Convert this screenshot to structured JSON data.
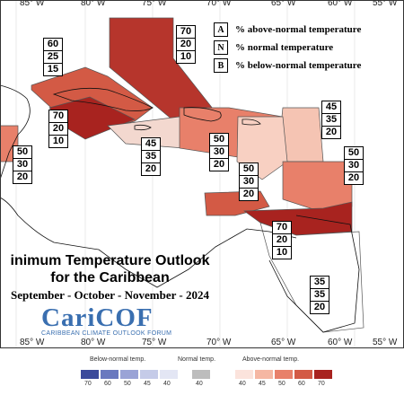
{
  "map": {
    "title_line1": "inimum Temperature Outlook",
    "title_line2": "for the Caribbean",
    "title_line3": "September - October - November - 2024",
    "logo": "CariCOF",
    "logo_sub": "CARIBBEAN CLIMATE OUTLOOK FORUM",
    "lon_labels": [
      "85° W",
      "80° W",
      "75° W",
      "70° W",
      "65° W",
      "60° W",
      "55° W"
    ],
    "lon_labels_bottom": [
      "85° W",
      "80° W",
      "75° W",
      "70° W",
      "65° W",
      "60° W",
      "55° W"
    ],
    "legend": [
      {
        "key": "A",
        "text": "% above-normal temperature"
      },
      {
        "key": "N",
        "text": "% normal temperature"
      },
      {
        "key": "B",
        "text": "% below-normal temperature"
      }
    ],
    "boxes": [
      {
        "name": "box-bahamas",
        "a": "70",
        "n": "20",
        "b": "10"
      },
      {
        "name": "box-cuba-west",
        "a": "60",
        "n": "25",
        "b": "15"
      },
      {
        "name": "box-cuba-south",
        "a": "70",
        "n": "20",
        "b": "10"
      },
      {
        "name": "box-central",
        "a": "50",
        "n": "30",
        "b": "20"
      },
      {
        "name": "box-jamaica",
        "a": "45",
        "n": "35",
        "b": "20"
      },
      {
        "name": "box-hispaniola",
        "a": "50",
        "n": "30",
        "b": "20"
      },
      {
        "name": "box-leeward",
        "a": "45",
        "n": "35",
        "b": "20"
      },
      {
        "name": "box-puerto-rico",
        "a": "50",
        "n": "30",
        "b": "20"
      },
      {
        "name": "box-windward",
        "a": "50",
        "n": "30",
        "b": "20"
      },
      {
        "name": "box-guianas-north",
        "a": "70",
        "n": "20",
        "b": "10"
      },
      {
        "name": "box-guianas-south",
        "a": "35",
        "n": "35",
        "b": "20"
      }
    ]
  },
  "scale": {
    "below_label": "Below-normal temp.",
    "normal_label": "Normal temp.",
    "above_label": "Above-normal temp.",
    "below_values": [
      "70",
      "60",
      "50",
      "45",
      "40"
    ],
    "normal_values": [
      "40"
    ],
    "above_values": [
      "40",
      "45",
      "50",
      "60",
      "70"
    ],
    "colors": {
      "below": [
        "#3b4a9b",
        "#6a79bf",
        "#9aa3d6",
        "#c5cbe8",
        "#e3e6f4"
      ],
      "normal": "#bdbdbd",
      "above": [
        "#fbe3dc",
        "#f5b7a3",
        "#e8806a",
        "#d35a45",
        "#a8231f"
      ]
    }
  }
}
